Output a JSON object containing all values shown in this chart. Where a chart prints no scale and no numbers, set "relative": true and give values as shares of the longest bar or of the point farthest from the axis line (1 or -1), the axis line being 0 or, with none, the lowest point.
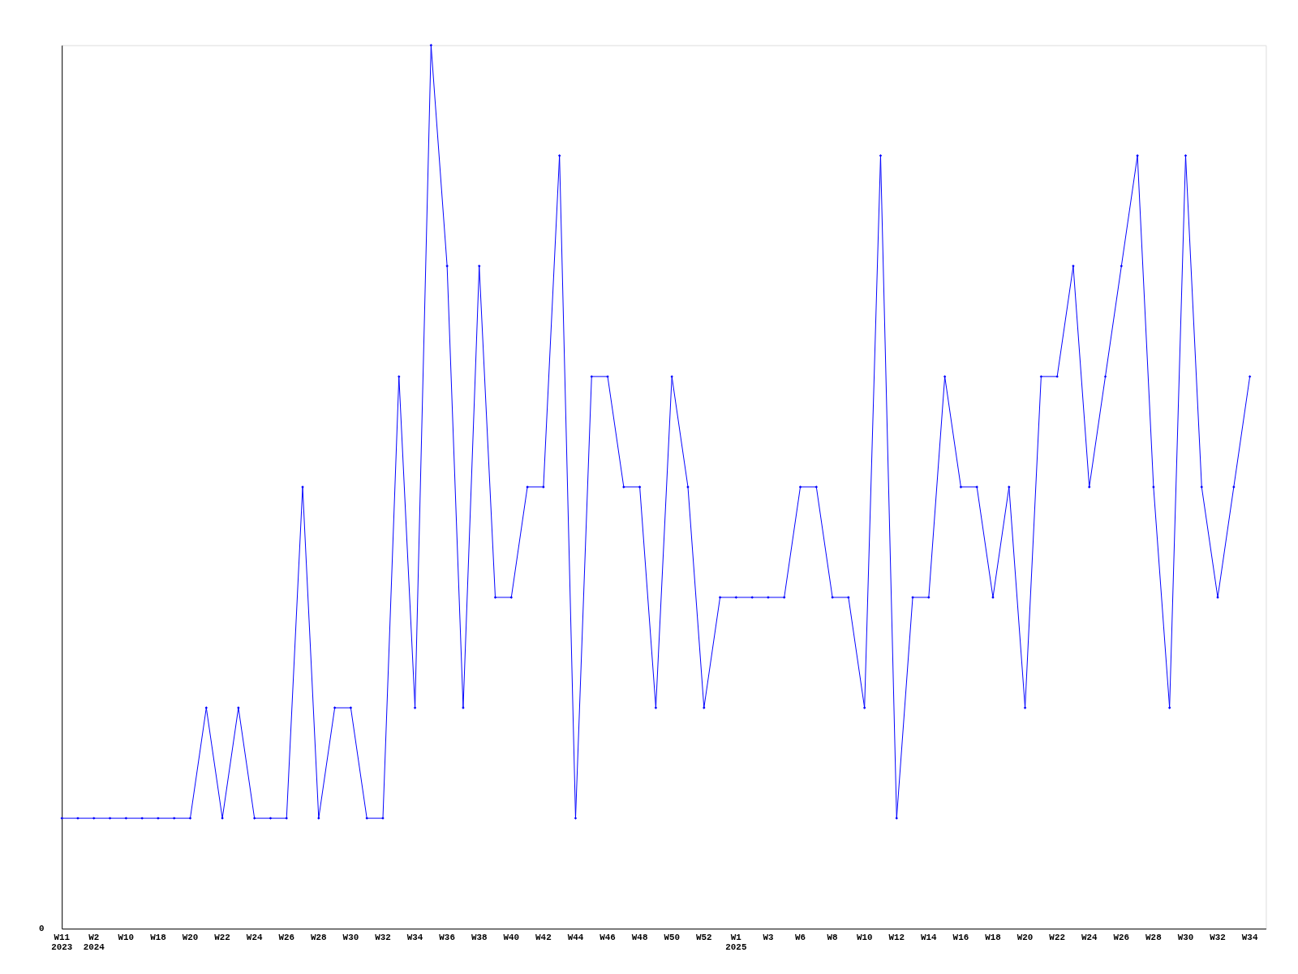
{
  "chart_data": {
    "type": "line",
    "relative": true,
    "marker": "diamond",
    "line_style": "solid",
    "grid": false,
    "legend": false,
    "categories": [
      "W11\n2023",
      null,
      "W2\n2024",
      null,
      "W10",
      null,
      "W18",
      null,
      "W20",
      null,
      "W22",
      null,
      "W24",
      null,
      "W26",
      null,
      "W28",
      null,
      "W30",
      null,
      "W32",
      null,
      "W34",
      null,
      "W36",
      null,
      "W38",
      null,
      "W40",
      null,
      "W42",
      null,
      "W44",
      null,
      "W46",
      null,
      "W48",
      null,
      "W50",
      null,
      "W52",
      null,
      "W1\n2025",
      null,
      "W3",
      null,
      "W6",
      null,
      "W8",
      null,
      "W10",
      null,
      "W12",
      null,
      "W14",
      null,
      "W16",
      null,
      "W18",
      null,
      "W20",
      null,
      "W22",
      null,
      "W24",
      null,
      "W26",
      null,
      "W28",
      null,
      "W30",
      null,
      "W32",
      null,
      "W34"
    ],
    "series": [
      {
        "color": "#0000ff",
        "values": [
          0.125,
          0.125,
          0.125,
          0.125,
          0.125,
          0.125,
          0.125,
          0.125,
          0.125,
          0.25,
          0.125,
          0.25,
          0.125,
          0.125,
          0.125,
          0.5,
          0.125,
          0.25,
          0.25,
          0.125,
          0.125,
          0.625,
          0.25,
          1,
          0.75,
          0.25,
          0.75,
          0.375,
          0.375,
          0.5,
          0.5,
          0.875,
          0.125,
          0.625,
          0.625,
          0.5,
          0.5,
          0.25,
          0.625,
          0.5,
          0.25,
          0.375,
          0.375,
          0.375,
          0.375,
          0.375,
          0.5,
          0.5,
          0.375,
          0.375,
          0.25,
          0.875,
          0.125,
          0.375,
          0.375,
          0.625,
          0.5,
          0.5,
          0.375,
          0.5,
          0.25,
          0.625,
          0.625,
          0.75,
          0.5,
          0.625,
          0.75,
          0.875,
          0.5,
          0.25,
          0.875,
          0.5,
          0.375,
          0.5,
          0.625
        ]
      }
    ],
    "annotations": [
      "0"
    ]
  }
}
